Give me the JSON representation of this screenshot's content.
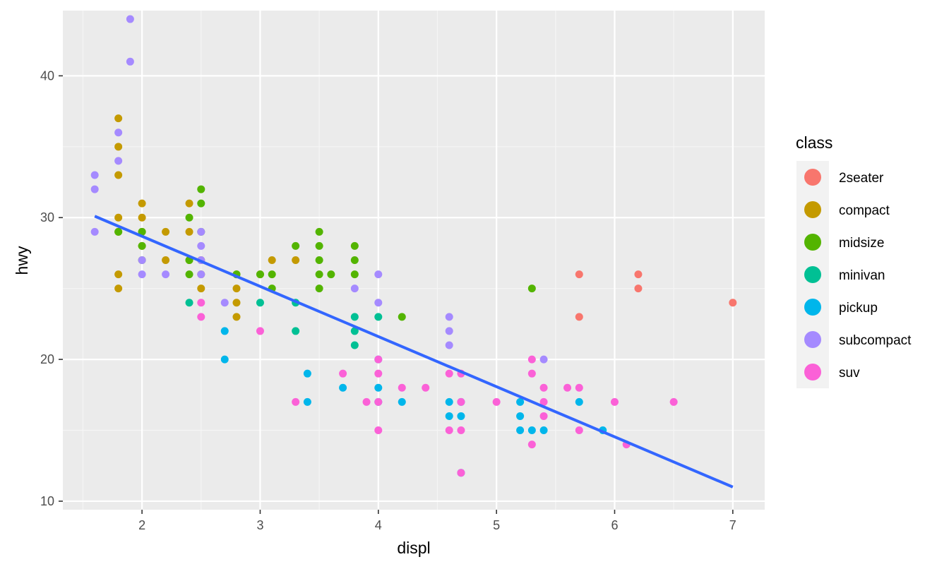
{
  "chart_data": {
    "type": "scatter",
    "title": "",
    "xlabel": "displ",
    "ylabel": "hwy",
    "xlim": [
      1.33,
      7.27
    ],
    "ylim": [
      9.4,
      44.6
    ],
    "x_ticks": [
      2,
      3,
      4,
      5,
      6,
      7
    ],
    "y_ticks": [
      10,
      20,
      30,
      40
    ],
    "grid": true,
    "legend": {
      "title": "class",
      "placement": "right"
    },
    "colors": {
      "panel_background": "#ebebeb",
      "grid_major": "#ffffff",
      "grid_minor": "#f5f5f5",
      "trend_line": "#3366ff",
      "legend_key_background": "#f2f2f2"
    },
    "series": [
      {
        "name": "2seater",
        "color": "#F8766D",
        "points": [
          [
            5.7,
            26
          ],
          [
            5.7,
            23
          ],
          [
            6.2,
            26
          ],
          [
            6.2,
            25
          ],
          [
            7.0,
            24
          ]
        ]
      },
      {
        "name": "compact",
        "color": "#C49A00",
        "points": [
          [
            1.8,
            37
          ],
          [
            1.8,
            35
          ],
          [
            1.8,
            33
          ],
          [
            1.8,
            30
          ],
          [
            1.8,
            29
          ],
          [
            1.8,
            26
          ],
          [
            1.8,
            25
          ],
          [
            2.0,
            31
          ],
          [
            2.0,
            30
          ],
          [
            2.0,
            29
          ],
          [
            2.0,
            28
          ],
          [
            2.2,
            29
          ],
          [
            2.2,
            27
          ],
          [
            2.4,
            31
          ],
          [
            2.4,
            29
          ],
          [
            2.4,
            27
          ],
          [
            2.5,
            27
          ],
          [
            2.5,
            26
          ],
          [
            2.5,
            25
          ],
          [
            2.8,
            26
          ],
          [
            2.8,
            25
          ],
          [
            2.8,
            24
          ],
          [
            2.8,
            23
          ],
          [
            3.0,
            26
          ],
          [
            3.1,
            27
          ],
          [
            3.3,
            27
          ]
        ]
      },
      {
        "name": "midsize",
        "color": "#53B400",
        "points": [
          [
            1.8,
            29
          ],
          [
            2.0,
            29
          ],
          [
            2.0,
            28
          ],
          [
            2.0,
            27
          ],
          [
            2.4,
            30
          ],
          [
            2.4,
            27
          ],
          [
            2.4,
            26
          ],
          [
            2.5,
            32
          ],
          [
            2.5,
            31
          ],
          [
            2.5,
            29
          ],
          [
            2.8,
            26
          ],
          [
            3.0,
            26
          ],
          [
            3.1,
            26
          ],
          [
            3.1,
            25
          ],
          [
            3.3,
            28
          ],
          [
            3.5,
            29
          ],
          [
            3.5,
            28
          ],
          [
            3.5,
            27
          ],
          [
            3.5,
            26
          ],
          [
            3.5,
            25
          ],
          [
            3.6,
            26
          ],
          [
            3.8,
            28
          ],
          [
            3.8,
            27
          ],
          [
            3.8,
            26
          ],
          [
            4.2,
            23
          ],
          [
            5.3,
            25
          ]
        ]
      },
      {
        "name": "minivan",
        "color": "#00C094",
        "points": [
          [
            2.4,
            24
          ],
          [
            3.0,
            24
          ],
          [
            3.3,
            24
          ],
          [
            3.3,
            22
          ],
          [
            3.8,
            23
          ],
          [
            3.8,
            22
          ],
          [
            3.8,
            21
          ],
          [
            4.0,
            23
          ]
        ]
      },
      {
        "name": "pickup",
        "color": "#00B6EB",
        "points": [
          [
            2.7,
            22
          ],
          [
            2.7,
            20
          ],
          [
            3.4,
            19
          ],
          [
            3.4,
            17
          ],
          [
            3.7,
            18
          ],
          [
            4.0,
            20
          ],
          [
            4.0,
            18
          ],
          [
            4.0,
            17
          ],
          [
            4.2,
            17
          ],
          [
            4.6,
            17
          ],
          [
            4.6,
            16
          ],
          [
            4.7,
            17
          ],
          [
            4.7,
            16
          ],
          [
            4.7,
            12
          ],
          [
            5.2,
            17
          ],
          [
            5.2,
            16
          ],
          [
            5.2,
            15
          ],
          [
            5.3,
            15
          ],
          [
            5.4,
            15
          ],
          [
            5.7,
            17
          ],
          [
            5.9,
            15
          ]
        ]
      },
      {
        "name": "subcompact",
        "color": "#A58AFF",
        "points": [
          [
            1.6,
            33
          ],
          [
            1.6,
            32
          ],
          [
            1.6,
            29
          ],
          [
            1.8,
            36
          ],
          [
            1.8,
            34
          ],
          [
            1.9,
            44
          ],
          [
            1.9,
            41
          ],
          [
            2.0,
            27
          ],
          [
            2.0,
            26
          ],
          [
            2.2,
            26
          ],
          [
            2.5,
            29
          ],
          [
            2.5,
            28
          ],
          [
            2.5,
            27
          ],
          [
            2.5,
            26
          ],
          [
            2.7,
            24
          ],
          [
            3.8,
            25
          ],
          [
            4.0,
            26
          ],
          [
            4.0,
            24
          ],
          [
            4.6,
            23
          ],
          [
            4.6,
            22
          ],
          [
            4.6,
            21
          ],
          [
            5.4,
            20
          ]
        ]
      },
      {
        "name": "suv",
        "color": "#FB61D7",
        "points": [
          [
            2.5,
            24
          ],
          [
            2.5,
            23
          ],
          [
            3.0,
            22
          ],
          [
            3.3,
            17
          ],
          [
            3.7,
            19
          ],
          [
            3.9,
            17
          ],
          [
            4.0,
            20
          ],
          [
            4.0,
            19
          ],
          [
            4.0,
            17
          ],
          [
            4.0,
            15
          ],
          [
            4.2,
            18
          ],
          [
            4.4,
            18
          ],
          [
            4.6,
            19
          ],
          [
            4.6,
            15
          ],
          [
            4.7,
            19
          ],
          [
            4.7,
            17
          ],
          [
            4.7,
            15
          ],
          [
            4.7,
            12
          ],
          [
            5.0,
            17
          ],
          [
            5.3,
            20
          ],
          [
            5.3,
            19
          ],
          [
            5.3,
            14
          ],
          [
            5.4,
            18
          ],
          [
            5.4,
            17
          ],
          [
            5.4,
            16
          ],
          [
            5.6,
            18
          ],
          [
            5.7,
            18
          ],
          [
            5.7,
            15
          ],
          [
            6.0,
            17
          ],
          [
            6.1,
            14
          ],
          [
            6.5,
            17
          ]
        ]
      }
    ],
    "trend_line": {
      "x": [
        1.6,
        7.0
      ],
      "y": [
        30.1,
        11.0
      ]
    }
  }
}
